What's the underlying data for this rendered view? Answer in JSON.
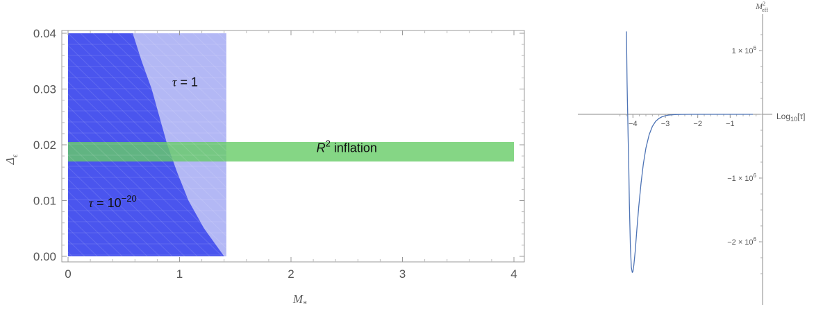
{
  "chart_data": [
    {
      "type": "area",
      "title": "",
      "xlabel": "M",
      "xlabel_sub": "*",
      "ylabel": "Δ",
      "ylabel_sub": "ϵ",
      "xlim": [
        0,
        4
      ],
      "ylim": [
        0,
        0.04
      ],
      "xticks": [
        0,
        1,
        2,
        3,
        4
      ],
      "xtick_labels": [
        "0",
        "1",
        "2",
        "3",
        "4"
      ],
      "yticks": [
        0.0,
        0.01,
        0.02,
        0.03,
        0.04
      ],
      "ytick_labels": [
        "0.00",
        "0.01",
        "0.02",
        "0.03",
        "0.04"
      ],
      "regions": [
        {
          "label": "τ = 1",
          "color": "#b3b8f5",
          "x_range": [
            0,
            1.42
          ],
          "x_max_at_y": [
            [
              0.0,
              1.42
            ],
            [
              0.04,
              1.42
            ]
          ]
        },
        {
          "label": "τ = 10",
          "label_sup": "−20",
          "color": "#4a55ee",
          "x_max_at_y": [
            [
              0.0,
              1.4
            ],
            [
              0.005,
              1.22
            ],
            [
              0.01,
              1.08
            ],
            [
              0.015,
              0.98
            ],
            [
              0.02,
              0.89
            ],
            [
              0.025,
              0.82
            ],
            [
              0.03,
              0.75
            ],
            [
              0.035,
              0.66
            ],
            [
              0.04,
              0.58
            ]
          ]
        }
      ],
      "band": {
        "label": "R",
        "label_sup": "2",
        "label_rest": " inflation",
        "color": "#66cc66",
        "x_range": [
          0,
          4
        ],
        "y_range": [
          0.017,
          0.0205
        ]
      },
      "annotations": [
        {
          "text": "τ = 1",
          "x": 1.05,
          "y": 0.0305
        },
        {
          "text": "τ = 10",
          "sup": "−20",
          "x": 0.4,
          "y": 0.0088
        },
        {
          "text": "R",
          "sup": "2",
          "rest": " inflation",
          "x": 2.5,
          "y": 0.0187
        }
      ]
    },
    {
      "type": "line",
      "title": "",
      "xlabel": "Log",
      "xlabel_sub": "10",
      "xlabel_rest": "[τ]",
      "ylabel": "M",
      "ylabel_sup": "2",
      "ylabel_sub": "eff",
      "xlim": [
        -4.5,
        0
      ],
      "ylim": [
        -2600000,
        1300000
      ],
      "xticks": [
        -4,
        -3,
        -2,
        -1
      ],
      "xtick_labels": [
        "−4",
        "−3",
        "−2",
        "−1"
      ],
      "yticks": [
        1000000,
        -1000000,
        -2000000
      ],
      "ytick_labels": [
        "1 × 10",
        "−1 × 10",
        "−2 × 10"
      ],
      "ytick_sup": "6",
      "series": [
        {
          "color": "#4d73b5",
          "x": [
            -4.2,
            -4.19,
            -4.18,
            -4.17,
            -4.16,
            -4.15,
            -4.13,
            -4.11,
            -4.08,
            -4.05,
            -4.02,
            -4.0,
            -3.97,
            -3.93,
            -3.88,
            -3.82,
            -3.75,
            -3.68,
            -3.6,
            -3.5,
            -3.4,
            -3.3,
            -3.2,
            -3.1,
            -3.0,
            -2.9,
            -2.7,
            -2.5,
            -2.2,
            -2.0,
            -1.5,
            -1.0,
            -0.5,
            -0.3
          ],
          "y": [
            1300000,
            850000,
            500000,
            200000,
            -50000,
            -300000,
            -800000,
            -1400000,
            -2050000,
            -2400000,
            -2480000,
            -2470000,
            -2360000,
            -2150000,
            -1820000,
            -1450000,
            -1080000,
            -780000,
            -530000,
            -320000,
            -190000,
            -110000,
            -65000,
            -38000,
            -22000,
            -12000,
            -4000,
            -1500,
            -300,
            -100,
            0,
            0,
            0,
            0
          ]
        }
      ]
    }
  ]
}
